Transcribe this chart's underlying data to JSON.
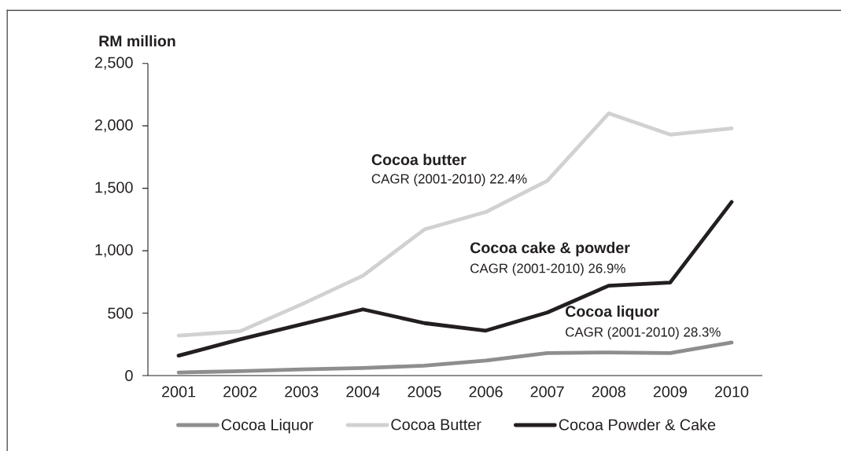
{
  "chart_data": {
    "type": "line",
    "ylabel": "RM million",
    "categories": [
      "2001",
      "2002",
      "2003",
      "2004",
      "2005",
      "2006",
      "2007",
      "2008",
      "2009",
      "2010"
    ],
    "series": [
      {
        "name": "Cocoa Liquor",
        "color": "#8e8e90",
        "values": [
          25,
          35,
          50,
          60,
          80,
          120,
          180,
          185,
          180,
          265
        ]
      },
      {
        "name": "Cocoa Butter",
        "color": "#d1d1d3",
        "values": [
          320,
          355,
          570,
          800,
          1170,
          1310,
          1560,
          2100,
          1930,
          1980
        ]
      },
      {
        "name": "Cocoa Powder & Cake",
        "color": "#231f20",
        "values": [
          160,
          290,
          410,
          530,
          420,
          360,
          505,
          720,
          745,
          1390
        ]
      }
    ],
    "ylim": [
      0,
      2500
    ],
    "yticks": [
      0,
      500,
      {
        "value": 1000,
        "label": "1,000"
      },
      {
        "value": 1500,
        "label": "1,500"
      },
      {
        "value": 2000,
        "label": "2,000"
      },
      {
        "value": 2500,
        "label": "2,500"
      }
    ],
    "annotations": [
      "Cocoa butter",
      "CAGR (2001-2010) 22.4%",
      "Cocoa cake & powder",
      "CAGR (2001-2010) 26.9%",
      "Cocoa liquor",
      "CAGR (2001-2010) 28.3%"
    ],
    "legend": "bottom",
    "marker": "none",
    "line_style": "solid"
  }
}
